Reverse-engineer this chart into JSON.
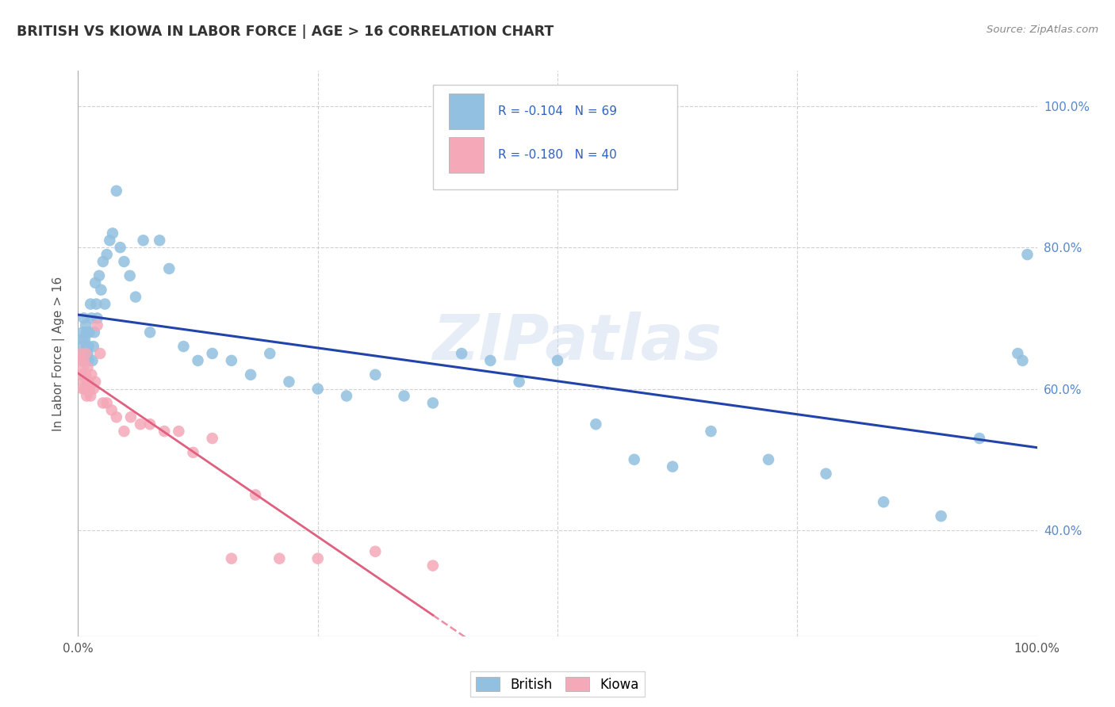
{
  "title": "BRITISH VS KIOWA IN LABOR FORCE | AGE > 16 CORRELATION CHART",
  "source": "Source: ZipAtlas.com",
  "ylabel": "In Labor Force | Age > 16",
  "watermark": "ZIPatlas",
  "british_color": "#92c0e0",
  "kiowa_color": "#f4a8b8",
  "british_R": -0.104,
  "british_N": 69,
  "kiowa_R": -0.18,
  "kiowa_N": 40,
  "legend_R_color": "#3060c0",
  "british_line_color": "#2244aa",
  "kiowa_line_color": "#e06080",
  "grid_color": "#cccccc",
  "background_color": "#ffffff",
  "xlim": [
    0.0,
    1.0
  ],
  "ylim": [
    0.25,
    1.05
  ],
  "right_yticks": [
    0.4,
    0.6,
    0.8,
    1.0
  ],
  "right_yticklabels": [
    "40.0%",
    "60.0%",
    "80.0%",
    "100.0%"
  ],
  "british_x": [
    0.003,
    0.004,
    0.005,
    0.005,
    0.006,
    0.006,
    0.007,
    0.007,
    0.008,
    0.008,
    0.009,
    0.009,
    0.01,
    0.01,
    0.011,
    0.011,
    0.012,
    0.013,
    0.014,
    0.015,
    0.016,
    0.017,
    0.018,
    0.019,
    0.02,
    0.022,
    0.024,
    0.026,
    0.028,
    0.03,
    0.033,
    0.036,
    0.04,
    0.044,
    0.048,
    0.054,
    0.06,
    0.068,
    0.075,
    0.085,
    0.095,
    0.11,
    0.125,
    0.14,
    0.16,
    0.18,
    0.2,
    0.22,
    0.25,
    0.28,
    0.31,
    0.34,
    0.37,
    0.4,
    0.43,
    0.46,
    0.5,
    0.54,
    0.58,
    0.62,
    0.66,
    0.72,
    0.78,
    0.84,
    0.9,
    0.94,
    0.98,
    0.985,
    0.99
  ],
  "british_y": [
    0.66,
    0.64,
    0.67,
    0.68,
    0.65,
    0.7,
    0.64,
    0.67,
    0.69,
    0.65,
    0.66,
    0.68,
    0.65,
    0.66,
    0.66,
    0.64,
    0.68,
    0.72,
    0.7,
    0.64,
    0.66,
    0.68,
    0.75,
    0.72,
    0.7,
    0.76,
    0.74,
    0.78,
    0.72,
    0.79,
    0.81,
    0.82,
    0.88,
    0.8,
    0.78,
    0.76,
    0.73,
    0.81,
    0.68,
    0.81,
    0.77,
    0.66,
    0.64,
    0.65,
    0.64,
    0.62,
    0.65,
    0.61,
    0.6,
    0.59,
    0.62,
    0.59,
    0.58,
    0.65,
    0.64,
    0.61,
    0.64,
    0.55,
    0.5,
    0.49,
    0.54,
    0.5,
    0.48,
    0.44,
    0.42,
    0.53,
    0.65,
    0.64,
    0.79
  ],
  "kiowa_x": [
    0.003,
    0.004,
    0.004,
    0.005,
    0.005,
    0.006,
    0.006,
    0.007,
    0.007,
    0.008,
    0.008,
    0.009,
    0.009,
    0.01,
    0.011,
    0.012,
    0.013,
    0.014,
    0.016,
    0.018,
    0.02,
    0.023,
    0.026,
    0.03,
    0.035,
    0.04,
    0.048,
    0.055,
    0.065,
    0.075,
    0.09,
    0.105,
    0.12,
    0.14,
    0.16,
    0.185,
    0.21,
    0.25,
    0.31,
    0.37
  ],
  "kiowa_y": [
    0.65,
    0.62,
    0.64,
    0.6,
    0.63,
    0.61,
    0.64,
    0.62,
    0.6,
    0.65,
    0.62,
    0.61,
    0.59,
    0.63,
    0.61,
    0.6,
    0.59,
    0.62,
    0.6,
    0.61,
    0.69,
    0.65,
    0.58,
    0.58,
    0.57,
    0.56,
    0.54,
    0.56,
    0.55,
    0.55,
    0.54,
    0.54,
    0.51,
    0.53,
    0.36,
    0.45,
    0.36,
    0.36,
    0.37,
    0.35
  ]
}
